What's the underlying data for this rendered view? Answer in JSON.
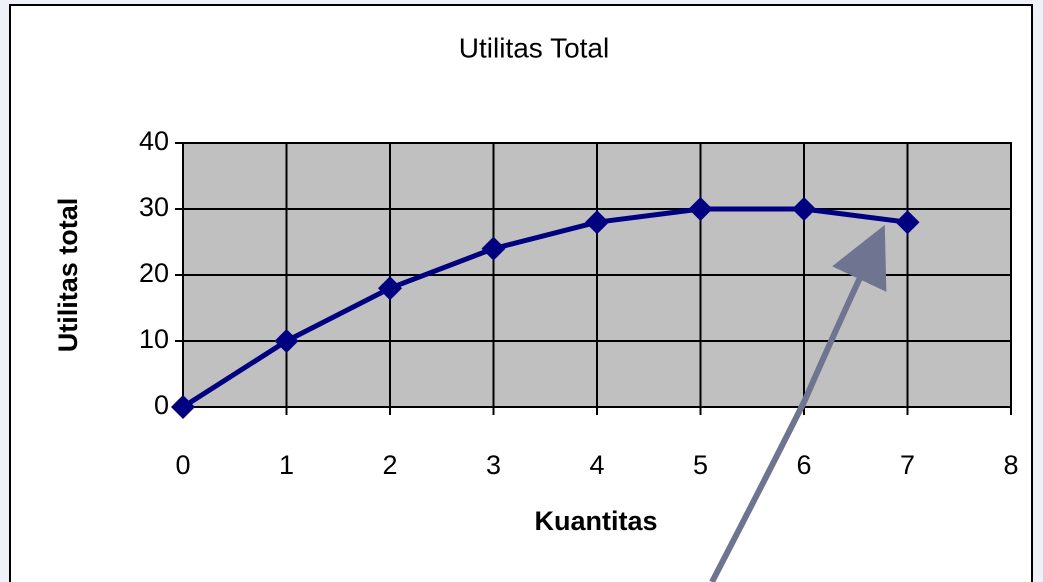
{
  "chart_data": {
    "type": "line",
    "title": "Utilitas Total",
    "x_label": "Kuantitas",
    "y_label": "Utilitas total",
    "x": [
      0,
      1,
      2,
      3,
      4,
      5,
      6,
      7
    ],
    "values": [
      0,
      10,
      18,
      24,
      28,
      30,
      30,
      28
    ],
    "color": "#000080",
    "xlim": [
      0,
      8
    ],
    "xticks": [
      0,
      1,
      2,
      3,
      4,
      5,
      6,
      7,
      8
    ],
    "ylim": [
      0,
      40
    ],
    "yticks": [
      0,
      10,
      20,
      30,
      40
    ],
    "grid": true
  }
}
